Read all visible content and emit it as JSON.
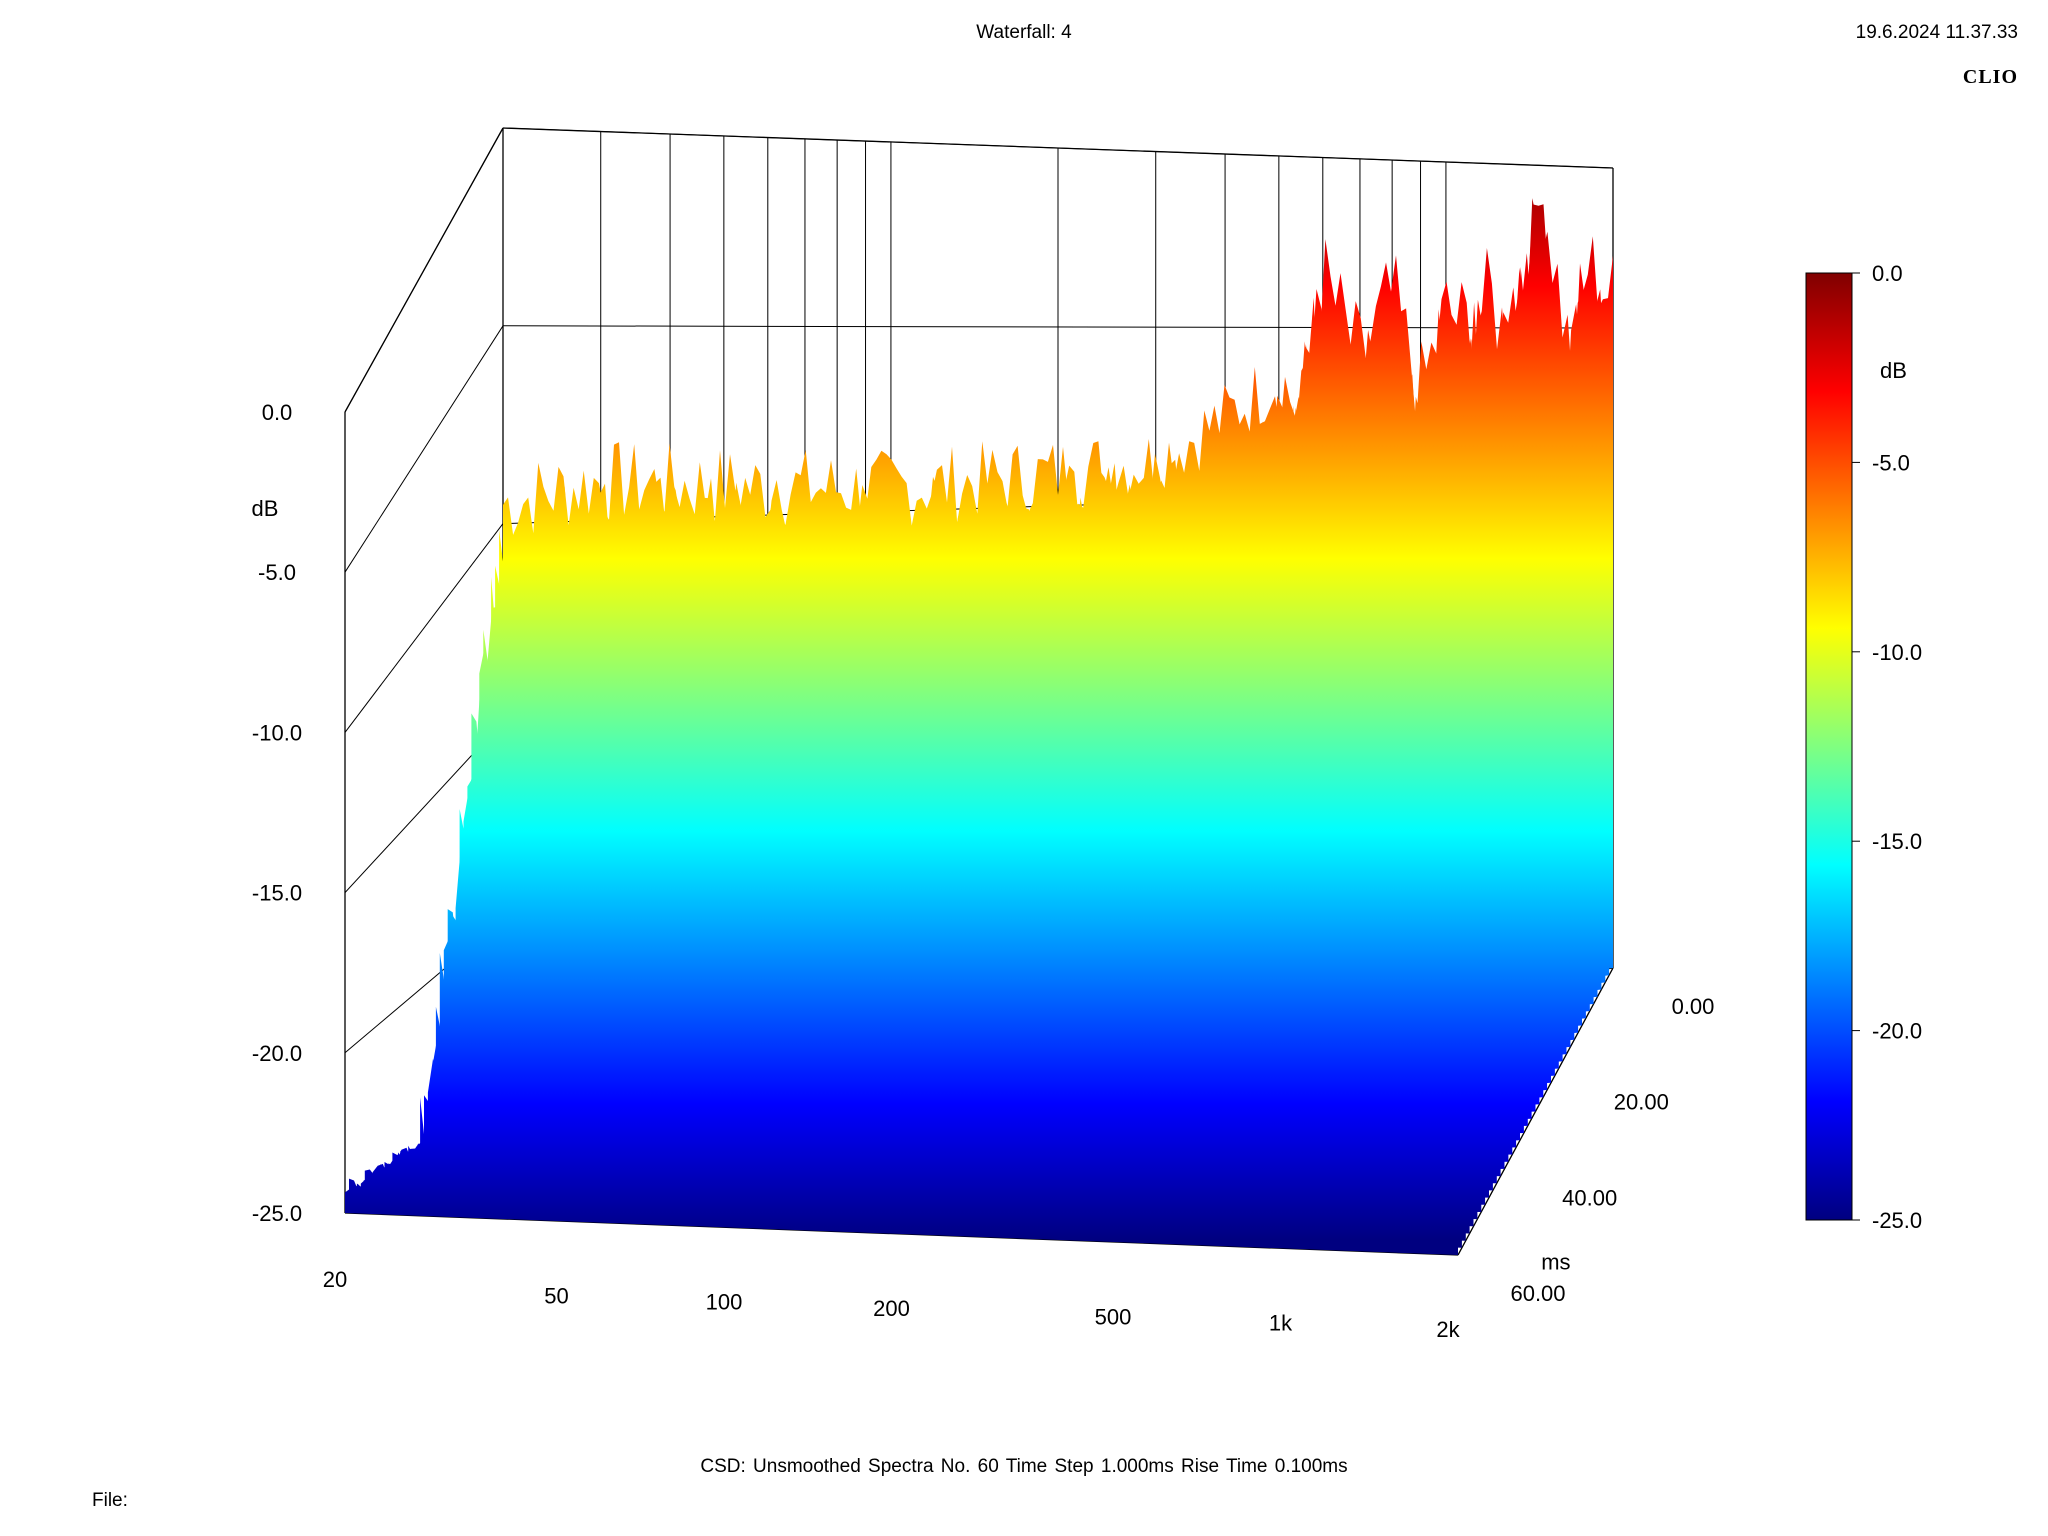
{
  "header": {
    "title": "Waterfall: 4",
    "timestamp": "19.6.2024 11.37.33",
    "brand": "CLIO"
  },
  "footer": {
    "info": "CSD:   Unsmoothed   Spectra No. 60   Time Step 1.000ms   Rise Time 0.100ms",
    "file_label": "File:"
  },
  "chart_data": {
    "type": "waterfall",
    "description_axes": {
      "x": {
        "scale": "log",
        "range": [
          20,
          2000
        ],
        "tick_labels": [
          "20",
          "50",
          "100",
          "200",
          "500",
          "1k",
          "2k"
        ],
        "tick_values": [
          20,
          50,
          100,
          200,
          500,
          1000,
          2000
        ]
      },
      "z": {
        "label": "ms",
        "range": [
          0,
          60
        ],
        "tick_labels": [
          "0.00",
          "20.00",
          "40.00",
          "60.00"
        ],
        "tick_values": [
          0,
          20,
          40,
          60
        ]
      },
      "y": {
        "label": "dB",
        "range": [
          -25,
          0
        ],
        "tick_labels": [
          "0.0",
          "-5.0",
          "-10.0",
          "-15.0",
          "-20.0",
          "-25.0"
        ],
        "tick_values": [
          0,
          -5,
          -10,
          -15,
          -20,
          -25
        ]
      }
    },
    "colorbar": {
      "label": "dB",
      "range": [
        -25,
        0
      ],
      "tick_labels": [
        "0.0",
        "-5.0",
        "-10.0",
        "-15.0",
        "-20.0",
        "-25.0"
      ],
      "colors": [
        "#000080",
        "#0000ff",
        "#0080ff",
        "#00ffff",
        "#80ff80",
        "#ffff00",
        "#ff8000",
        "#ff0000",
        "#800000"
      ]
    },
    "front_spectrum": {
      "frequency_hz": [
        20,
        30,
        50,
        100,
        200,
        300,
        400,
        500,
        550,
        600,
        700,
        800,
        900,
        1000,
        1100,
        1200,
        1300,
        1500,
        1700,
        1800,
        2000
      ],
      "level_db": [
        -9.5,
        -9.0,
        -9.2,
        -9.4,
        -9.1,
        -8.8,
        -7.6,
        -6.5,
        -7.5,
        -3.5,
        -6.0,
        -4.0,
        -7.0,
        -4.5,
        -5.0,
        -4.0,
        -5.5,
        -1.0,
        -6.5,
        -3.0,
        -4.0
      ]
    }
  }
}
